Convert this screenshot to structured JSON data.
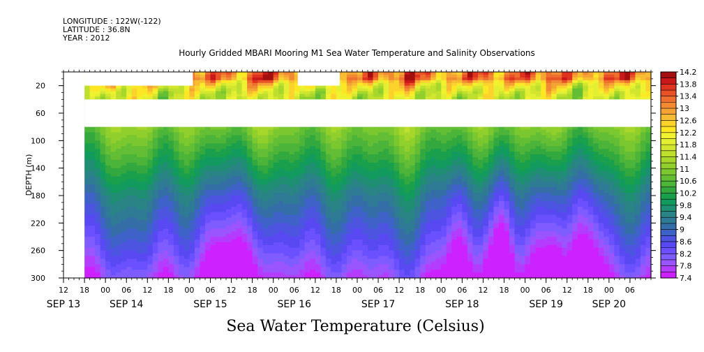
{
  "header": {
    "longitude": "LONGITUDE : 122W(-122)",
    "latitude": "LATITUDE : 36.8N",
    "year": "YEAR : 2012"
  },
  "title": "Hourly Gridded MBARI Mooring M1 Sea Water Temperature and Salinity Observations",
  "x_axis_title": "Sea Water Temperature (Celsius)",
  "chart_data": {
    "type": "heatmap",
    "title": "Hourly Gridded MBARI Mooring M1 Sea Water Temperature and Salinity Observations",
    "xlabel": "",
    "ylabel": "DEPTH (m)",
    "colorbar_label": "Sea Water Temperature (Celsius)",
    "x_range_hours": [
      -12,
      156
    ],
    "x_tick_hours": [
      -12,
      -6,
      0,
      6,
      12,
      18,
      24,
      30,
      36,
      42,
      48,
      54,
      60,
      66,
      72,
      78,
      84,
      90,
      96,
      102,
      108,
      114,
      120,
      126,
      132,
      138,
      144,
      150
    ],
    "x_tick_labels": [
      "12",
      "18",
      "00",
      "06",
      "12",
      "18",
      "00",
      "06",
      "12",
      "18",
      "00",
      "06",
      "12",
      "18",
      "00",
      "06",
      "12",
      "18",
      "00",
      "06",
      "12",
      "18",
      "00",
      "06",
      "12",
      "18",
      "00",
      "06"
    ],
    "date_labels": [
      {
        "label": "SEP 13",
        "hour": -12
      },
      {
        "label": "SEP 14",
        "hour": 6
      },
      {
        "label": "SEP 15",
        "hour": 30
      },
      {
        "label": "SEP 16",
        "hour": 54
      },
      {
        "label": "SEP 17",
        "hour": 78
      },
      {
        "label": "SEP 18",
        "hour": 102
      },
      {
        "label": "SEP 19",
        "hour": 126
      },
      {
        "label": "SEP 20",
        "hour": 144
      }
    ],
    "y_range": [
      300,
      0
    ],
    "y_ticks": [
      20,
      60,
      100,
      140,
      180,
      220,
      260,
      300
    ],
    "data_start_hour": -6,
    "missing_regions": [
      {
        "x": [
          -12,
          -6
        ],
        "depth": [
          0,
          300
        ]
      },
      {
        "x": [
          -6,
          25
        ],
        "depth": [
          0,
          20
        ]
      },
      {
        "x": [
          55,
          67
        ],
        "depth": [
          0,
          20
        ]
      },
      {
        "x": [
          -6,
          156
        ],
        "depth": [
          40,
          80
        ]
      }
    ],
    "colorbar": {
      "levels": [
        7.4,
        7.6,
        7.8,
        8.0,
        8.2,
        8.4,
        8.6,
        8.8,
        9.0,
        9.2,
        9.4,
        9.6,
        9.8,
        10.0,
        10.2,
        10.4,
        10.6,
        10.8,
        11.0,
        11.2,
        11.4,
        11.6,
        11.8,
        12.0,
        12.2,
        12.4,
        12.6,
        12.8,
        13.0,
        13.2,
        13.4,
        13.6,
        13.8,
        14.0,
        14.2
      ],
      "tick_labels": [
        "14.2",
        "13.8",
        "13.4",
        "13",
        "12.6",
        "12.2",
        "11.8",
        "11.4",
        "11",
        "10.6",
        "10.2",
        "9.8",
        "9.4",
        "9",
        "8.6",
        "8.2",
        "7.8",
        "7.4"
      ],
      "colors": [
        "#cc22ff",
        "#b33cff",
        "#9a55ff",
        "#7f5cff",
        "#6a50ff",
        "#5849f2",
        "#4d55e0",
        "#3f62c8",
        "#356ea6",
        "#2f7a95",
        "#2a8485",
        "#1f8e72",
        "#139a5e",
        "#1aa04d",
        "#33a83f",
        "#4db43a",
        "#63be35",
        "#7ac72f",
        "#90cf2c",
        "#a8d72c",
        "#bedf2e",
        "#d2e62f",
        "#e3ef32",
        "#f0f22f",
        "#fde725",
        "#fcd22c",
        "#f8bc33",
        "#f5a335",
        "#f28a33",
        "#ee6f2e",
        "#e85226",
        "#df3320",
        "#c9181a",
        "#a30e0e"
      ]
    },
    "depth_temperature_profile": [
      {
        "depth": 10,
        "temp": 13.2
      },
      {
        "depth": 15,
        "temp": 12.6
      },
      {
        "depth": 20,
        "temp": 12.2
      },
      {
        "depth": 30,
        "temp": 11.8
      },
      {
        "depth": 40,
        "temp": 11.6
      },
      {
        "depth": 80,
        "temp": 11.0
      },
      {
        "depth": 100,
        "temp": 10.7
      },
      {
        "depth": 140,
        "temp": 10.1
      },
      {
        "depth": 180,
        "temp": 9.4
      },
      {
        "depth": 220,
        "temp": 8.9
      },
      {
        "depth": 260,
        "temp": 8.4
      },
      {
        "depth": 300,
        "temp": 7.8
      }
    ]
  }
}
